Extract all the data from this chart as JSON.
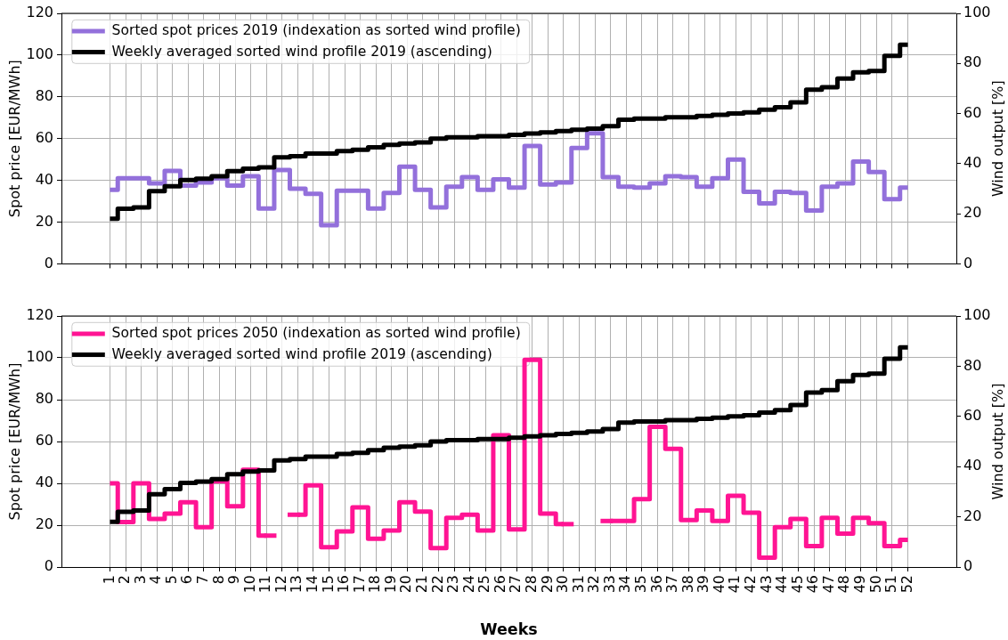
{
  "chart_data": [
    {
      "type": "step",
      "x": [
        1,
        2,
        3,
        4,
        5,
        6,
        7,
        8,
        9,
        10,
        11,
        12,
        13,
        14,
        15,
        16,
        17,
        18,
        19,
        20,
        21,
        22,
        23,
        24,
        25,
        26,
        27,
        28,
        29,
        30,
        31,
        32,
        33,
        34,
        35,
        36,
        37,
        38,
        39,
        40,
        41,
        42,
        43,
        44,
        45,
        46,
        47,
        48,
        49,
        50,
        51,
        52
      ],
      "xlim": [
        -2.1,
        55.1
      ],
      "xticks": [
        1,
        2,
        3,
        4,
        5,
        6,
        7,
        8,
        9,
        10,
        11,
        12,
        13,
        14,
        15,
        16,
        17,
        18,
        19,
        20,
        21,
        22,
        23,
        24,
        25,
        26,
        27,
        28,
        29,
        30,
        31,
        32,
        33,
        34,
        35,
        36,
        37,
        38,
        39,
        40,
        41,
        42,
        43,
        44,
        45,
        46,
        47,
        48,
        49,
        50,
        51,
        52
      ],
      "ylim": [
        0,
        120
      ],
      "yticks": [
        0,
        20,
        40,
        60,
        80,
        100,
        120
      ],
      "y2lim": [
        0,
        100
      ],
      "y2ticks": [
        0,
        20,
        40,
        60,
        80,
        100
      ],
      "ylabel": "Spot price [EUR/MWh]",
      "y2label": "Wind output [%]",
      "grid": true,
      "legend": "top left",
      "tick_labels": "y",
      "series": [
        {
          "name": "Sorted spot prices 2019 (indexation as sorted wind profile)",
          "color": "#9370db",
          "values": [
            35.5,
            41,
            41,
            38.5,
            44.5,
            37.5,
            39,
            41,
            37.5,
            42,
            26.5,
            45,
            36,
            33.5,
            18.5,
            35,
            35,
            26.5,
            34,
            46.5,
            35.5,
            27,
            37,
            41.5,
            35.5,
            40.5,
            36.5,
            56.5,
            38,
            39,
            55.5,
            62.5,
            41.5,
            37,
            36.5,
            38.5,
            42,
            41.5,
            37,
            41,
            50,
            34.5,
            29,
            34.5,
            34,
            25.5,
            37,
            38.5,
            49,
            44,
            31,
            36.5
          ]
        },
        {
          "name": "Weekly averaged sorted wind profile 2019 (ascending)",
          "color": "#000000",
          "axis": "y2",
          "values": [
            18,
            22,
            22.5,
            29,
            31,
            33.5,
            34,
            35,
            37,
            38,
            38.5,
            42.5,
            43,
            44,
            44,
            45,
            45.5,
            46.5,
            47.5,
            48,
            48.5,
            50,
            50.5,
            50.5,
            51,
            51,
            51.5,
            52,
            52.5,
            53,
            53.5,
            54,
            55,
            57.5,
            58,
            58,
            58.5,
            58.5,
            59,
            59.5,
            60,
            60.5,
            61.5,
            62.5,
            64.5,
            69.5,
            70.5,
            74,
            76.5,
            77,
            83,
            87.5
          ]
        }
      ]
    },
    {
      "type": "step",
      "x": [
        1,
        2,
        3,
        4,
        5,
        6,
        7,
        8,
        9,
        10,
        11,
        12,
        13,
        14,
        15,
        16,
        17,
        18,
        19,
        20,
        21,
        22,
        23,
        24,
        25,
        26,
        27,
        28,
        29,
        30,
        31,
        32,
        33,
        34,
        35,
        36,
        37,
        38,
        39,
        40,
        41,
        42,
        43,
        44,
        45,
        46,
        47,
        48,
        49,
        50,
        51,
        52
      ],
      "xlim": [
        -2.1,
        55.1
      ],
      "xticks": [
        1,
        2,
        3,
        4,
        5,
        6,
        7,
        8,
        9,
        10,
        11,
        12,
        13,
        14,
        15,
        16,
        17,
        18,
        19,
        20,
        21,
        22,
        23,
        24,
        25,
        26,
        27,
        28,
        29,
        30,
        31,
        32,
        33,
        34,
        35,
        36,
        37,
        38,
        39,
        40,
        41,
        42,
        43,
        44,
        45,
        46,
        47,
        48,
        49,
        50,
        51,
        52
      ],
      "ylim": [
        0,
        120
      ],
      "yticks": [
        0,
        20,
        40,
        60,
        80,
        100,
        120
      ],
      "y2lim": [
        0,
        100
      ],
      "y2ticks": [
        0,
        20,
        40,
        60,
        80,
        100
      ],
      "xlabel": "Weeks",
      "ylabel": "Spot price [EUR/MWh]",
      "y2label": "Wind output [%]",
      "grid": true,
      "legend": "top left",
      "series": [
        {
          "name": "Sorted spot prices 2050 (indexation as sorted wind profile)",
          "color": "#ff1493",
          "values": [
            40,
            21.5,
            40,
            23,
            25.5,
            31,
            19,
            41,
            29,
            46.5,
            15,
            null,
            25,
            39,
            9.5,
            17,
            28.5,
            13.5,
            17.5,
            31,
            26.5,
            9,
            23.5,
            25,
            17.5,
            63,
            18,
            99,
            25.5,
            20.5,
            null,
            null,
            22,
            22,
            32.5,
            67,
            56.5,
            22.5,
            27,
            22,
            34,
            26,
            4.5,
            19,
            23,
            10,
            23.5,
            16,
            23.5,
            21,
            10,
            13
          ]
        },
        {
          "name": "Weekly averaged sorted wind profile 2019 (ascending)",
          "color": "#000000",
          "axis": "y2",
          "values": [
            18,
            22,
            22.5,
            29,
            31,
            33.5,
            34,
            35,
            37,
            38,
            38.5,
            42.5,
            43,
            44,
            44,
            45,
            45.5,
            46.5,
            47.5,
            48,
            48.5,
            50,
            50.5,
            50.5,
            51,
            51,
            51.5,
            52,
            52.5,
            53,
            53.5,
            54,
            55,
            57.5,
            58,
            58,
            58.5,
            58.5,
            59,
            59.5,
            60,
            60.5,
            61.5,
            62.5,
            64.5,
            69.5,
            70.5,
            74,
            76.5,
            77,
            83,
            87.5
          ]
        }
      ]
    }
  ]
}
